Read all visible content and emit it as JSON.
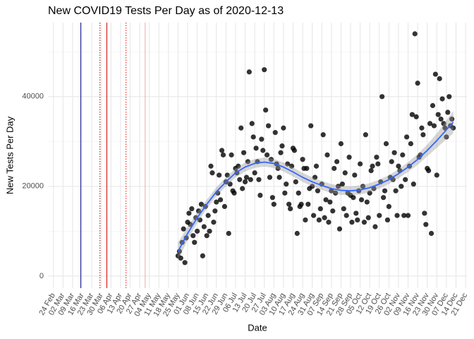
{
  "chart_data": {
    "type": "scatter",
    "title": "New COVID19 Tests Per Day as of 2020-12-13",
    "x_label": "Date",
    "y_label": "New Tests Per Day",
    "xlim": [
      "20 Feb",
      "22 Dec"
    ],
    "ylim": [
      -2700,
      56500
    ],
    "xticks": [
      "24 Feb",
      "02 Mar",
      "09 Mar",
      "16 Mar",
      "23 Mar",
      "30 Mar",
      "06 Apr",
      "13 Apr",
      "20 Apr",
      "27 Apr",
      "04 May",
      "11 May",
      "18 May",
      "25 May",
      "01 Jun",
      "08 Jun",
      "15 Jun",
      "22 Jun",
      "29 Jun",
      "06 Jul",
      "13 Jul",
      "20 Jul",
      "27 Jul",
      "03 Aug",
      "10 Aug",
      "17 Aug",
      "24 Aug",
      "31 Aug",
      "07 Sep",
      "14 Sep",
      "21 Sep",
      "28 Sep",
      "05 Oct",
      "12 Oct",
      "19 Oct",
      "26 Oct",
      "02 Nov",
      "09 Nov",
      "16 Nov",
      "23 Nov",
      "30 Nov",
      "07 Dec",
      "14 Dec",
      "21 Dec"
    ],
    "yticks": [
      0,
      20000,
      40000
    ],
    "y_minor_grid": [
      10000,
      30000,
      50000
    ],
    "grid": true,
    "vlines": [
      {
        "x": "15 Mar",
        "color": "#00008b",
        "style": "solid"
      },
      {
        "x": "29 Mar",
        "color": "#8b0000",
        "style": "dotted"
      },
      {
        "x": "03 Apr",
        "color": "#cc0000",
        "style": "solid"
      },
      {
        "x": "17 Apr",
        "color": "#ff0000",
        "style": "dotted"
      },
      {
        "x": "01 May",
        "color": "#f4a6a6",
        "style": "solid"
      }
    ],
    "points": {
      "color": "#000000",
      "x": [
        "25 May",
        "26 May",
        "27 May",
        "28 May",
        "29 May",
        "30 May",
        "31 May",
        "01 Jun",
        "02 Jun",
        "03 Jun",
        "04 Jun",
        "05 Jun",
        "06 Jun",
        "07 Jun",
        "08 Jun",
        "09 Jun",
        "10 Jun",
        "11 Jun",
        "12 Jun",
        "13 Jun",
        "14 Jun",
        "15 Jun",
        "16 Jun",
        "17 Jun",
        "18 Jun",
        "19 Jun",
        "20 Jun",
        "21 Jun",
        "22 Jun",
        "23 Jun",
        "24 Jun",
        "25 Jun",
        "26 Jun",
        "27 Jun",
        "28 Jun",
        "29 Jun",
        "30 Jun",
        "01 Jul",
        "02 Jul",
        "03 Jul",
        "04 Jul",
        "05 Jul",
        "06 Jul",
        "07 Jul",
        "08 Jul",
        "09 Jul",
        "10 Jul",
        "11 Jul",
        "12 Jul",
        "13 Jul",
        "14 Jul",
        "15 Jul",
        "16 Jul",
        "17 Jul",
        "18 Jul",
        "19 Jul",
        "20 Jul",
        "21 Jul",
        "22 Jul",
        "23 Jul",
        "24 Jul",
        "25 Jul",
        "26 Jul",
        "27 Jul",
        "28 Jul",
        "29 Jul",
        "30 Jul",
        "31 Jul",
        "01 Aug",
        "02 Aug",
        "03 Aug",
        "04 Aug",
        "05 Aug",
        "06 Aug",
        "07 Aug",
        "08 Aug",
        "09 Aug",
        "10 Aug",
        "11 Aug",
        "12 Aug",
        "13 Aug",
        "14 Aug",
        "15 Aug",
        "16 Aug",
        "17 Aug",
        "18 Aug",
        "19 Aug",
        "20 Aug",
        "21 Aug",
        "22 Aug",
        "23 Aug",
        "24 Aug",
        "25 Aug",
        "26 Aug",
        "27 Aug",
        "28 Aug",
        "29 Aug",
        "30 Aug",
        "31 Aug",
        "01 Sep",
        "02 Sep",
        "03 Sep",
        "04 Sep",
        "05 Sep",
        "06 Sep",
        "07 Sep",
        "08 Sep",
        "09 Sep",
        "10 Sep",
        "11 Sep",
        "12 Sep",
        "13 Sep",
        "14 Sep",
        "15 Sep",
        "16 Sep",
        "17 Sep",
        "18 Sep",
        "19 Sep",
        "20 Sep",
        "21 Sep",
        "22 Sep",
        "23 Sep",
        "24 Sep",
        "25 Sep",
        "26 Sep",
        "27 Sep",
        "28 Sep",
        "29 Sep",
        "30 Sep",
        "01 Oct",
        "02 Oct",
        "03 Oct",
        "04 Oct",
        "05 Oct",
        "06 Oct",
        "07 Oct",
        "08 Oct",
        "09 Oct",
        "10 Oct",
        "11 Oct",
        "12 Oct",
        "13 Oct",
        "14 Oct",
        "15 Oct",
        "16 Oct",
        "17 Oct",
        "18 Oct",
        "19 Oct",
        "20 Oct",
        "21 Oct",
        "22 Oct",
        "23 Oct",
        "24 Oct",
        "25 Oct",
        "26 Oct",
        "27 Oct",
        "28 Oct",
        "29 Oct",
        "30 Oct",
        "31 Oct",
        "01 Nov",
        "02 Nov",
        "03 Nov",
        "04 Nov",
        "05 Nov",
        "06 Nov",
        "07 Nov",
        "08 Nov",
        "09 Nov",
        "10 Nov",
        "11 Nov",
        "12 Nov",
        "13 Nov",
        "14 Nov",
        "15 Nov",
        "16 Nov",
        "17 Nov",
        "18 Nov",
        "19 Nov",
        "20 Nov",
        "21 Nov",
        "22 Nov",
        "23 Nov",
        "24 Nov",
        "25 Nov",
        "26 Nov",
        "27 Nov",
        "28 Nov",
        "29 Nov",
        "30 Nov",
        "01 Dec",
        "02 Dec",
        "03 Dec",
        "04 Dec",
        "05 Dec",
        "06 Dec",
        "07 Dec",
        "08 Dec",
        "09 Dec",
        "10 Dec",
        "11 Dec",
        "12 Dec"
      ],
      "values": [
        4500,
        5500,
        4000,
        7500,
        10500,
        3000,
        8500,
        12000,
        14000,
        11500,
        15000,
        9000,
        7500,
        13000,
        10000,
        14500,
        12500,
        16000,
        4500,
        11000,
        15500,
        9000,
        13500,
        10000,
        24500,
        23000,
        12000,
        14500,
        16500,
        18500,
        22500,
        17000,
        28000,
        27000,
        15500,
        21000,
        22500,
        9500,
        20500,
        27000,
        19000,
        18500,
        24000,
        23000,
        24500,
        21500,
        33000,
        19500,
        27500,
        21000,
        22000,
        25500,
        45500,
        21500,
        34000,
        31000,
        23000,
        28500,
        25500,
        21500,
        18000,
        30500,
        28000,
        46000,
        37000,
        27000,
        33500,
        22000,
        26000,
        17500,
        16000,
        32000,
        25000,
        24000,
        22000,
        27500,
        29000,
        33000,
        18500,
        20500,
        25000,
        16000,
        15000,
        24500,
        28500,
        28000,
        21000,
        9500,
        18500,
        15500,
        16000,
        26000,
        24000,
        12500,
        24000,
        16000,
        19500,
        33500,
        20000,
        13500,
        22000,
        24500,
        19000,
        12500,
        15000,
        20500,
        31500,
        13000,
        17000,
        27000,
        12000,
        16500,
        19000,
        14500,
        24000,
        18500,
        25500,
        20000,
        10500,
        29500,
        20500,
        15000,
        23000,
        13500,
        18500,
        26500,
        18000,
        12000,
        17500,
        22500,
        14000,
        12500,
        19000,
        25000,
        17000,
        20000,
        12000,
        31500,
        16500,
        13000,
        18500,
        23500,
        24500,
        19500,
        11000,
        26500,
        25000,
        13500,
        21000,
        40000,
        17500,
        19000,
        29500,
        12500,
        15500,
        22000,
        25500,
        21500,
        27500,
        19000,
        13500,
        24500,
        23500,
        20000,
        27000,
        13500,
        21500,
        31000,
        13500,
        24500,
        29500,
        36000,
        20500,
        54000,
        35500,
        43000,
        26500,
        27000,
        33000,
        31500,
        14000,
        11500,
        24000,
        23500,
        34000,
        9500,
        38000,
        33500,
        45000,
        22500,
        36000,
        44000,
        35000,
        39500,
        34000,
        33000,
        31000,
        36500,
        40000,
        33500,
        35000,
        33000
      ]
    },
    "smooth": {
      "color": "#3366ff",
      "band_color": "#999999",
      "x": [
        "25 May",
        "01 Jun",
        "08 Jun",
        "15 Jun",
        "22 Jun",
        "29 Jun",
        "06 Jul",
        "13 Jul",
        "20 Jul",
        "27 Jul",
        "03 Aug",
        "10 Aug",
        "17 Aug",
        "24 Aug",
        "31 Aug",
        "07 Sep",
        "14 Sep",
        "21 Sep",
        "28 Sep",
        "05 Oct",
        "12 Oct",
        "19 Oct",
        "26 Oct",
        "02 Nov",
        "09 Nov",
        "16 Nov",
        "23 Nov",
        "30 Nov",
        "07 Dec",
        "12 Dec"
      ],
      "values": [
        5500,
        9500,
        13000,
        16000,
        18800,
        21000,
        23000,
        24300,
        25100,
        25400,
        25100,
        24300,
        23200,
        22000,
        21000,
        20200,
        19500,
        19100,
        19000,
        19200,
        19700,
        20500,
        21500,
        22800,
        24300,
        26000,
        28000,
        30200,
        32600,
        34300
      ],
      "lower": [
        3500,
        8000,
        11800,
        15000,
        17800,
        20000,
        22000,
        23300,
        24100,
        24400,
        24100,
        23300,
        22200,
        21000,
        20000,
        19200,
        18500,
        18100,
        18000,
        18200,
        18700,
        19500,
        20500,
        21800,
        23200,
        24800,
        26700,
        28600,
        30500,
        31800
      ],
      "upper": [
        7500,
        11000,
        14200,
        17000,
        19800,
        22000,
        24000,
        25300,
        26100,
        26400,
        26100,
        25300,
        24200,
        23000,
        22000,
        21200,
        20500,
        20100,
        20000,
        20200,
        20700,
        21500,
        22500,
        23800,
        25400,
        27200,
        29300,
        31800,
        34700,
        36800
      ]
    }
  }
}
